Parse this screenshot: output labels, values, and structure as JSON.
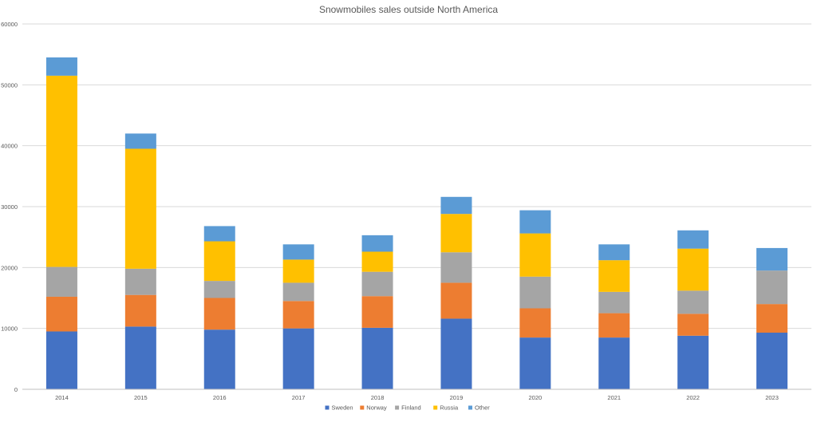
{
  "chart_data": {
    "type": "bar",
    "stacked": true,
    "title": "Snowmobiles sales outside North America",
    "xlabel": "",
    "ylabel": "",
    "ylim": [
      0,
      60000
    ],
    "y_ticks": [
      "0",
      "10000",
      "20000",
      "30000",
      "40000",
      "50000",
      "60000"
    ],
    "grid": true,
    "legend_position": "bottom",
    "categories": [
      "2014",
      "2015",
      "2016",
      "2017",
      "2018",
      "2019",
      "2020",
      "2021",
      "2022",
      "2023"
    ],
    "series": [
      {
        "name": "Sweden",
        "color": "#4472c4",
        "values": [
          9500,
          10300,
          9800,
          10000,
          10100,
          11600,
          8500,
          8500,
          8800,
          9300
        ]
      },
      {
        "name": "Norway",
        "color": "#ed7d31",
        "values": [
          5700,
          5200,
          5200,
          4500,
          5200,
          5900,
          4800,
          4000,
          3600,
          4700
        ]
      },
      {
        "name": "Finland",
        "color": "#a5a5a5",
        "values": [
          4900,
          4300,
          2800,
          3000,
          4000,
          5000,
          5200,
          3500,
          3800,
          5500
        ]
      },
      {
        "name": "Russia",
        "color": "#ffc000",
        "values": [
          31400,
          19700,
          6500,
          3800,
          3300,
          6300,
          7100,
          5200,
          6900,
          0
        ]
      },
      {
        "name": "Other",
        "color": "#5b9bd5",
        "values": [
          3000,
          2500,
          2500,
          2500,
          2700,
          2800,
          3800,
          2600,
          3000,
          3700
        ]
      }
    ]
  }
}
